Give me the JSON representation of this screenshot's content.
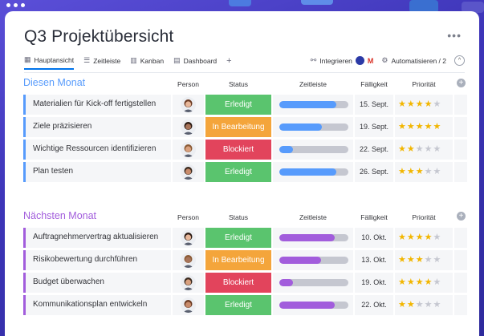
{
  "window": {
    "title": "Q3 Projektübersicht",
    "more_label": "•••"
  },
  "tabs": [
    {
      "icon": "table-icon",
      "label": "Hauptansicht",
      "active": true
    },
    {
      "icon": "timeline-icon",
      "label": "Zeitleiste",
      "active": false
    },
    {
      "icon": "kanban-icon",
      "label": "Kanban",
      "active": false
    },
    {
      "icon": "dashboard-icon",
      "label": "Dashboard",
      "active": false
    }
  ],
  "add_tab_label": "+",
  "toolbar": {
    "integrate_label": "Integrieren",
    "automate_label": "Automatisieren / 2",
    "collapse_label": "^"
  },
  "columns": {
    "person": "Person",
    "status": "Status",
    "timeline": "Zeitleiste",
    "due": "Fälligkeit",
    "priority": "Priorität"
  },
  "status_colors": {
    "Erledigt": "#5ac46e",
    "In Bearbeitung": "#f4a53b",
    "Blockiert": "#e2445c"
  },
  "groups": [
    {
      "title": "Diesen Monat",
      "color": "#579bfc",
      "rows": [
        {
          "name": "Materialien für Kick-off fertigstellen",
          "avatar": "woman-avatar-1",
          "status": "Erledigt",
          "progress": 0.82,
          "due": "15. Sept.",
          "stars": 4
        },
        {
          "name": "Ziele präzisieren",
          "avatar": "woman-avatar-2",
          "status": "In Bearbeitung",
          "progress": 0.62,
          "due": "19. Sept.",
          "stars": 5
        },
        {
          "name": "Wichtige Ressourcen identifizieren",
          "avatar": "woman-avatar-3",
          "status": "Blockiert",
          "progress": 0.2,
          "due": "22. Sept.",
          "stars": 2
        },
        {
          "name": "Plan testen",
          "avatar": "man-avatar-1",
          "status": "Erledigt",
          "progress": 0.82,
          "due": "26. Sept.",
          "stars": 3
        }
      ]
    },
    {
      "title": "Nächsten Monat",
      "color": "#a25ddc",
      "rows": [
        {
          "name": "Auftragnehmervertrag aktualisieren",
          "avatar": "woman-avatar-1",
          "status": "Erledigt",
          "progress": 0.8,
          "due": "10. Okt.",
          "stars": 4
        },
        {
          "name": "Risikobewertung durchführen",
          "avatar": "man-avatar-2",
          "status": "In Bearbeitung",
          "progress": 0.6,
          "due": "13. Okt.",
          "stars": 3
        },
        {
          "name": "Budget überwachen",
          "avatar": "woman-avatar-4",
          "status": "Blockiert",
          "progress": 0.2,
          "due": "19. Okt.",
          "stars": 4
        },
        {
          "name": "Kommunikationsplan entwickeln",
          "avatar": "man-avatar-3",
          "status": "Erledigt",
          "progress": 0.8,
          "due": "22. Okt.",
          "stars": 2
        }
      ]
    }
  ]
}
